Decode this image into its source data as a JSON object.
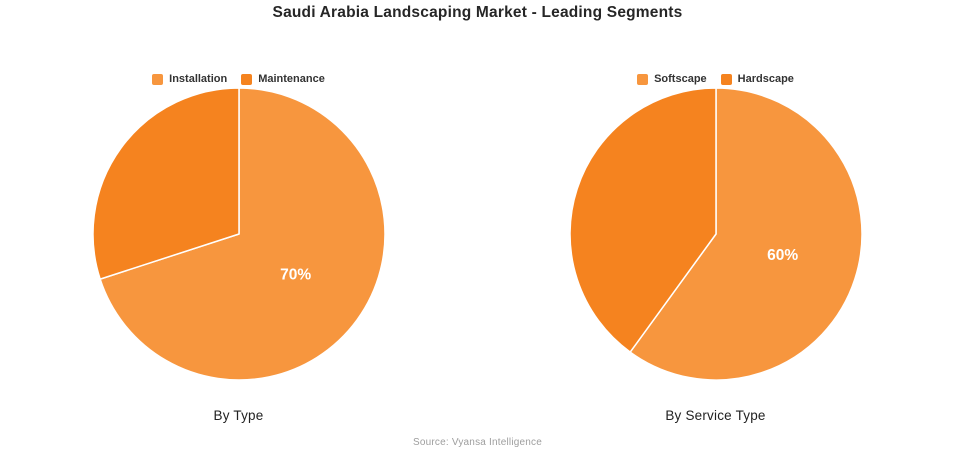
{
  "title": "Saudi Arabia Landscaping Market - Leading Segments",
  "source": "Source: Vyansa Intelligence",
  "colors": {
    "light_orange": "#F7963E",
    "dark_orange": "#F5831F",
    "slice_divider": "#ffffff",
    "label_text": "#ffffff"
  },
  "chart_data": [
    {
      "type": "pie",
      "title": "By Type",
      "legend_position": "top",
      "start_angle_deg": 0,
      "direction": "clockwise",
      "label_radius_fraction": 0.48,
      "categories": [
        "Installation",
        "Maintenance"
      ],
      "values": [
        70,
        30
      ],
      "slices": [
        {
          "label": "Installation",
          "value": 70,
          "display": "70%",
          "color": "#F7963E"
        },
        {
          "label": "Maintenance",
          "value": 30,
          "display": "",
          "color": "#F5831F"
        }
      ]
    },
    {
      "type": "pie",
      "title": "By Service Type",
      "legend_position": "top",
      "start_angle_deg": 0,
      "direction": "clockwise",
      "label_radius_fraction": 0.48,
      "categories": [
        "Softscape",
        "Hardscape"
      ],
      "values": [
        60,
        40
      ],
      "slices": [
        {
          "label": "Softscape",
          "value": 60,
          "display": "60%",
          "color": "#F7963E"
        },
        {
          "label": "Hardscape",
          "value": 40,
          "display": "",
          "color": "#F5831F"
        }
      ]
    }
  ]
}
